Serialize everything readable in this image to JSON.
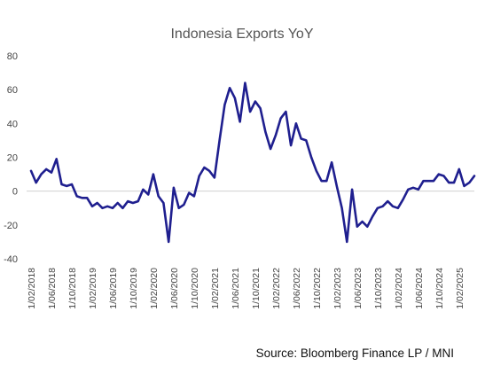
{
  "chart_data": {
    "type": "line",
    "title": "Indonesia Exports YoY",
    "source": "Source: Bloomberg Finance LP / MNI",
    "xlabel": "",
    "ylabel": "",
    "ylim": [
      -40,
      80
    ],
    "yticks": [
      -40,
      -20,
      0,
      20,
      40,
      60,
      80
    ],
    "xtick_labels": [
      "1/02/2018",
      "1/06/2018",
      "1/10/2018",
      "1/02/2019",
      "1/06/2019",
      "1/10/2019",
      "1/02/2020",
      "1/06/2020",
      "1/10/2020",
      "1/02/2021",
      "1/06/2021",
      "1/10/2021",
      "1/02/2022",
      "1/06/2022",
      "1/10/2022",
      "1/02/2023",
      "1/06/2023",
      "1/10/2023",
      "1/02/2024",
      "1/06/2024",
      "1/10/2024",
      "1/02/2025"
    ],
    "grid": false,
    "line_color": "#1f1f8f",
    "series": [
      {
        "values": [
          12,
          5,
          10,
          13,
          11,
          19,
          4,
          3,
          4,
          -3,
          -4,
          -4,
          -9,
          -7,
          -10,
          -9,
          -10,
          -7,
          -10,
          -6,
          -7,
          -6,
          1,
          -2,
          10,
          -3,
          -7,
          -30,
          2,
          -10,
          -8,
          -1,
          -3,
          9,
          14,
          12,
          8,
          30,
          51,
          61,
          55,
          41,
          64,
          47,
          53,
          49,
          35,
          25,
          33,
          43,
          47,
          27,
          40,
          31,
          30,
          20,
          12,
          6,
          6,
          17,
          3,
          -10,
          -30,
          1,
          -21,
          -18,
          -21,
          -15,
          -10,
          -9,
          -6,
          -9,
          -10,
          -5,
          1,
          2,
          1,
          6,
          6,
          6,
          10,
          9,
          5,
          5,
          13,
          3,
          5,
          9
        ]
      }
    ]
  }
}
